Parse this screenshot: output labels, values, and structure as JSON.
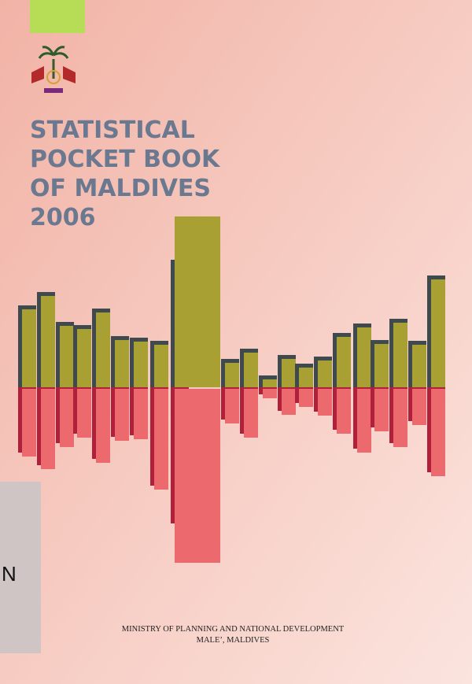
{
  "cover": {
    "title_lines": [
      "STATISTICAL",
      "POCKET BOOK",
      "OF MALDIVES",
      "2006"
    ],
    "publisher_lines": [
      "MINISTRY OF PLANNING AND NATIONAL DEVELOPMENT",
      "MALE’, MALDIVES"
    ],
    "sticker": "N"
  }
}
